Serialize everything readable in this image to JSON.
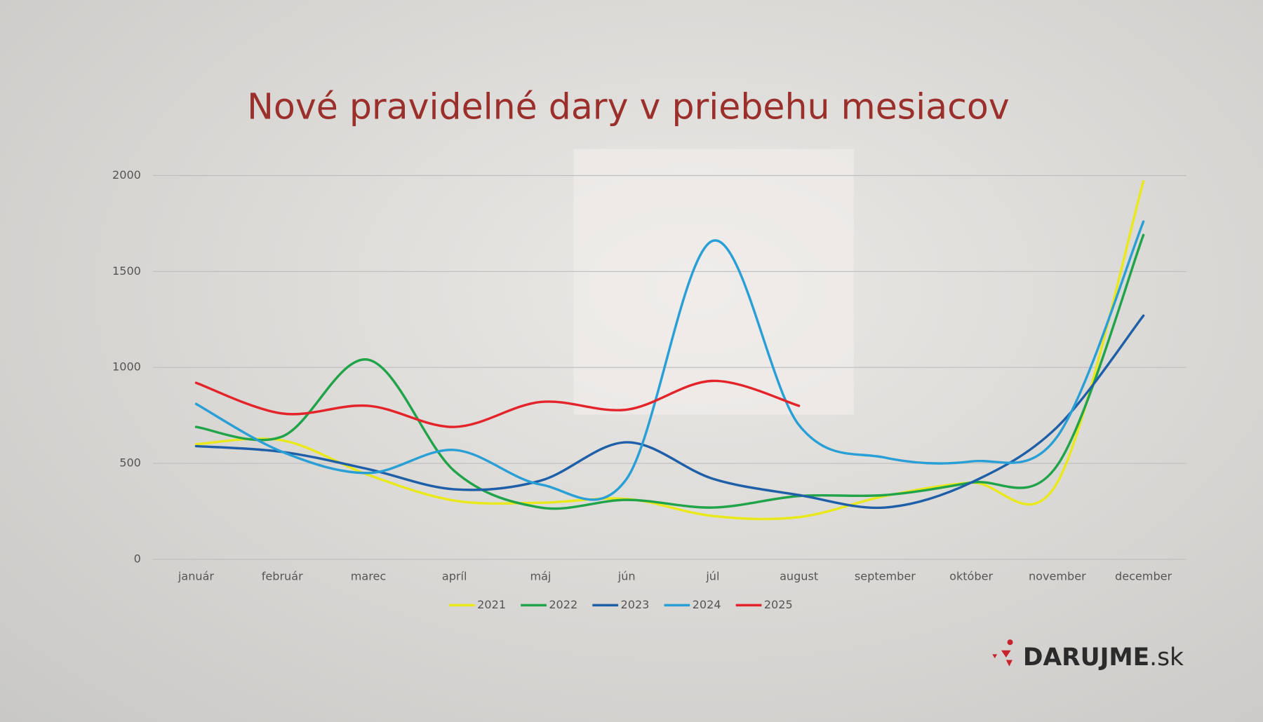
{
  "chart_data": {
    "type": "line",
    "title": "Nové pravidelné dary v priebehu mesiacov",
    "categories": [
      "január",
      "február",
      "marec",
      "apríl",
      "máj",
      "jún",
      "júl",
      "august",
      "september",
      "október",
      "november",
      "december"
    ],
    "series": [
      {
        "name": "2021",
        "color": "#e8e81c",
        "values": [
          600,
          620,
          440,
          306,
          295,
          315,
          226,
          220,
          330,
          400,
          400,
          1970
        ]
      },
      {
        "name": "2022",
        "color": "#21a34a",
        "values": [
          690,
          640,
          1040,
          460,
          270,
          310,
          270,
          330,
          335,
          400,
          490,
          1690
        ]
      },
      {
        "name": "2023",
        "color": "#1f5fa8",
        "values": [
          590,
          560,
          470,
          365,
          410,
          610,
          420,
          335,
          270,
          400,
          690,
          1270
        ]
      },
      {
        "name": "2024",
        "color": "#2a9fd6",
        "values": [
          810,
          560,
          450,
          570,
          390,
          420,
          1660,
          700,
          530,
          510,
          640,
          1760
        ]
      },
      {
        "name": "2025",
        "color": "#e3252b",
        "values": [
          920,
          760,
          800,
          690,
          820,
          780,
          930,
          800,
          null,
          null,
          null,
          null
        ]
      }
    ],
    "ylim": [
      0,
      2000
    ],
    "yticks": [
      0,
      500,
      1000,
      1500,
      2000
    ],
    "grid": true,
    "legend": "bottom",
    "logo": {
      "main": "DARUJME",
      "suffix": ".sk"
    }
  }
}
